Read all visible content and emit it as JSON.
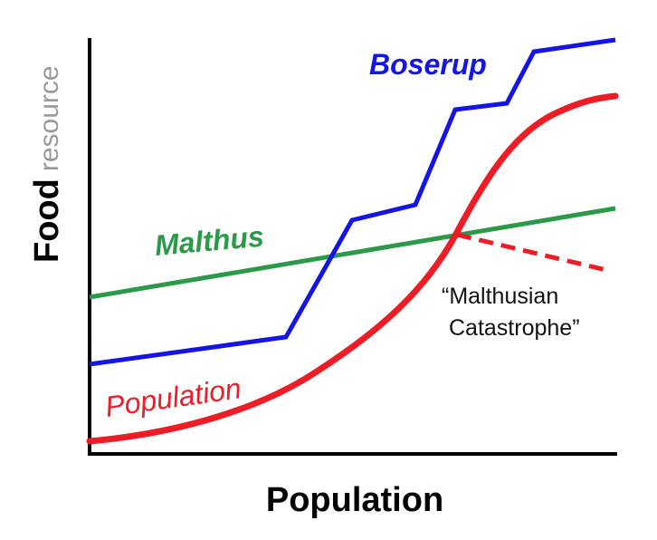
{
  "axes": {
    "x_label": "Population",
    "y_label_bold": "Food",
    "y_label_light": "resource"
  },
  "labels": {
    "boserup": "Boserup",
    "malthus": "Malthus",
    "population": "Population",
    "catastrophe_line1": "“Malthusian",
    "catastrophe_line2": "Catastrophe”"
  },
  "colors": {
    "boserup": "#1414e6",
    "malthus": "#2a9a48",
    "population": "#ee1c24",
    "axis": "#000000",
    "y_label_light": "#9a9a9a",
    "annotation": "#111111"
  }
}
